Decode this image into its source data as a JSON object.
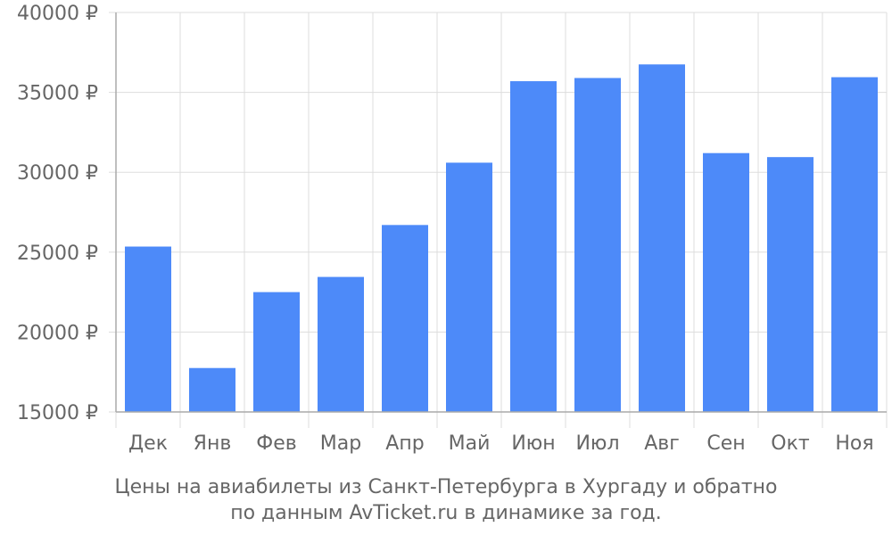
{
  "chart_data": {
    "type": "bar",
    "categories": [
      "Дек",
      "Янв",
      "Фев",
      "Мар",
      "Апр",
      "Май",
      "Июн",
      "Июл",
      "Авг",
      "Сен",
      "Окт",
      "Ноя"
    ],
    "values": [
      25350,
      17750,
      22500,
      23450,
      26700,
      30600,
      35700,
      35900,
      36750,
      31200,
      30950,
      35950
    ],
    "ylim": [
      15000,
      40000
    ],
    "yticks": [
      15000,
      20000,
      25000,
      30000,
      35000,
      40000
    ],
    "ytick_labels": [
      "15000 ₽",
      "20000 ₽",
      "25000 ₽",
      "30000 ₽",
      "35000 ₽",
      "40000 ₽"
    ],
    "xlabel": "",
    "ylabel": "",
    "grid": true,
    "bar_color": "#4d8af9",
    "caption_line1": "Цены на авиабилеты из Санкт-Петербурга в Хургаду и обратно",
    "caption_line2": "по данным AvTicket.ru в динамике за год."
  }
}
